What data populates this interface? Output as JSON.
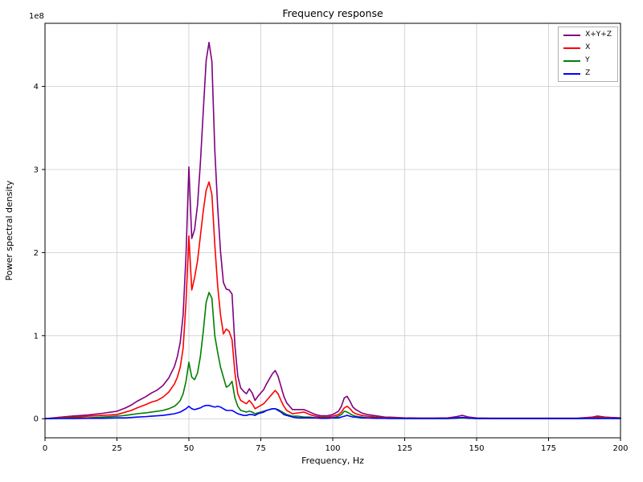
{
  "chart_data": {
    "type": "line",
    "title": "Frequency response",
    "xlabel": "Frequency, Hz",
    "ylabel": "Power spectral density",
    "y_offset_label": "1e8",
    "value_scale": 100000000,
    "grid": true,
    "legend_position": "upper right",
    "xlim": [
      0,
      200
    ],
    "ylim": [
      -0.23,
      4.76
    ],
    "xticks": [
      0,
      25,
      50,
      75,
      100,
      125,
      150,
      175,
      200
    ],
    "yticks": [
      0,
      1,
      2,
      3,
      4
    ],
    "x": [
      0,
      5,
      10,
      15,
      20,
      25,
      28,
      30,
      32,
      35,
      37,
      39,
      41,
      43,
      45,
      46,
      47,
      48,
      49,
      50,
      51,
      52,
      53,
      54,
      55,
      56,
      57,
      58,
      59,
      60,
      61,
      62,
      63,
      64,
      65,
      66,
      67,
      68,
      69,
      70,
      71,
      72,
      73,
      74,
      75,
      76,
      77,
      78,
      79,
      80,
      81,
      82,
      83,
      84,
      85,
      86,
      88,
      90,
      92,
      94,
      96,
      98,
      100,
      102,
      103,
      104,
      105,
      106,
      107,
      108,
      110,
      112,
      115,
      118,
      120,
      125,
      130,
      135,
      140,
      143,
      145,
      147,
      150,
      155,
      160,
      165,
      170,
      175,
      180,
      185,
      190,
      192,
      195,
      200
    ],
    "series": [
      {
        "name": "X+Y+Z",
        "color": "#800080",
        "values": [
          0,
          0.017,
          0.033,
          0.045,
          0.065,
          0.09,
          0.13,
          0.165,
          0.21,
          0.265,
          0.31,
          0.345,
          0.4,
          0.49,
          0.63,
          0.75,
          0.92,
          1.25,
          1.97,
          3.03,
          2.17,
          2.28,
          2.57,
          3.08,
          3.7,
          4.31,
          4.53,
          4.3,
          3.24,
          2.55,
          2.01,
          1.64,
          1.56,
          1.55,
          1.5,
          0.88,
          0.51,
          0.37,
          0.33,
          0.3,
          0.36,
          0.31,
          0.22,
          0.27,
          0.31,
          0.35,
          0.42,
          0.48,
          0.54,
          0.58,
          0.51,
          0.39,
          0.27,
          0.19,
          0.15,
          0.11,
          0.11,
          0.11,
          0.08,
          0.05,
          0.035,
          0.035,
          0.05,
          0.09,
          0.15,
          0.25,
          0.27,
          0.21,
          0.14,
          0.11,
          0.07,
          0.05,
          0.035,
          0.02,
          0.018,
          0.01,
          0.008,
          0.008,
          0.01,
          0.025,
          0.04,
          0.021,
          0.009,
          0.007,
          0.007,
          0.007,
          0.007,
          0.007,
          0.007,
          0.007,
          0.018,
          0.032,
          0.018,
          0.01
        ]
      },
      {
        "name": "X",
        "color": "#ff0000",
        "values": [
          0,
          0.01,
          0.02,
          0.03,
          0.04,
          0.05,
          0.08,
          0.1,
          0.13,
          0.17,
          0.2,
          0.22,
          0.26,
          0.32,
          0.42,
          0.5,
          0.62,
          0.85,
          1.4,
          2.2,
          1.55,
          1.7,
          1.9,
          2.2,
          2.5,
          2.75,
          2.85,
          2.7,
          2.1,
          1.6,
          1.25,
          1.02,
          1.08,
          1.05,
          0.95,
          0.55,
          0.3,
          0.22,
          0.2,
          0.18,
          0.22,
          0.18,
          0.12,
          0.14,
          0.16,
          0.18,
          0.22,
          0.26,
          0.3,
          0.34,
          0.3,
          0.22,
          0.15,
          0.1,
          0.08,
          0.06,
          0.07,
          0.08,
          0.05,
          0.03,
          0.02,
          0.02,
          0.03,
          0.05,
          0.08,
          0.13,
          0.15,
          0.12,
          0.08,
          0.06,
          0.04,
          0.03,
          0.02,
          0.01,
          0.01,
          0.005,
          0.004,
          0.004,
          0.005,
          0.01,
          0.015,
          0.008,
          0.004,
          0.003,
          0.003,
          0.003,
          0.003,
          0.003,
          0.003,
          0.003,
          0.01,
          0.02,
          0.01,
          0.005
        ]
      },
      {
        "name": "Y",
        "color": "#008000",
        "values": [
          0,
          0.005,
          0.01,
          0.01,
          0.02,
          0.03,
          0.04,
          0.05,
          0.06,
          0.07,
          0.08,
          0.09,
          0.1,
          0.12,
          0.15,
          0.18,
          0.22,
          0.3,
          0.45,
          0.68,
          0.5,
          0.47,
          0.55,
          0.75,
          1.05,
          1.4,
          1.52,
          1.45,
          1.0,
          0.8,
          0.62,
          0.5,
          0.38,
          0.4,
          0.45,
          0.25,
          0.15,
          0.1,
          0.09,
          0.08,
          0.09,
          0.08,
          0.06,
          0.07,
          0.08,
          0.09,
          0.1,
          0.11,
          0.12,
          0.12,
          0.11,
          0.09,
          0.07,
          0.05,
          0.04,
          0.03,
          0.03,
          0.02,
          0.02,
          0.01,
          0.01,
          0.01,
          0.01,
          0.03,
          0.05,
          0.09,
          0.08,
          0.06,
          0.04,
          0.03,
          0.02,
          0.01,
          0.01,
          0.005,
          0.005,
          0.003,
          0.002,
          0.002,
          0.003,
          0.005,
          0.01,
          0.005,
          0.002,
          0.002,
          0.002,
          0.002,
          0.002,
          0.002,
          0.002,
          0.002,
          0.005,
          0.008,
          0.005,
          0.003
        ]
      },
      {
        "name": "Z",
        "color": "#0000ff",
        "values": [
          0,
          0.002,
          0.003,
          0.005,
          0.005,
          0.01,
          0.01,
          0.015,
          0.02,
          0.025,
          0.03,
          0.035,
          0.04,
          0.05,
          0.06,
          0.07,
          0.08,
          0.1,
          0.12,
          0.15,
          0.12,
          0.11,
          0.12,
          0.13,
          0.15,
          0.16,
          0.16,
          0.15,
          0.14,
          0.15,
          0.14,
          0.12,
          0.1,
          0.1,
          0.1,
          0.08,
          0.06,
          0.05,
          0.04,
          0.04,
          0.05,
          0.05,
          0.04,
          0.06,
          0.07,
          0.08,
          0.1,
          0.11,
          0.12,
          0.12,
          0.1,
          0.08,
          0.05,
          0.04,
          0.03,
          0.02,
          0.01,
          0.01,
          0.01,
          0.01,
          0.005,
          0.005,
          0.01,
          0.01,
          0.02,
          0.03,
          0.04,
          0.03,
          0.02,
          0.02,
          0.01,
          0.01,
          0.005,
          0.005,
          0.003,
          0.002,
          0.002,
          0.002,
          0.002,
          0.01,
          0.015,
          0.008,
          0.003,
          0.002,
          0.002,
          0.002,
          0.002,
          0.002,
          0.002,
          0.002,
          0.003,
          0.004,
          0.003,
          0.002
        ]
      }
    ]
  }
}
